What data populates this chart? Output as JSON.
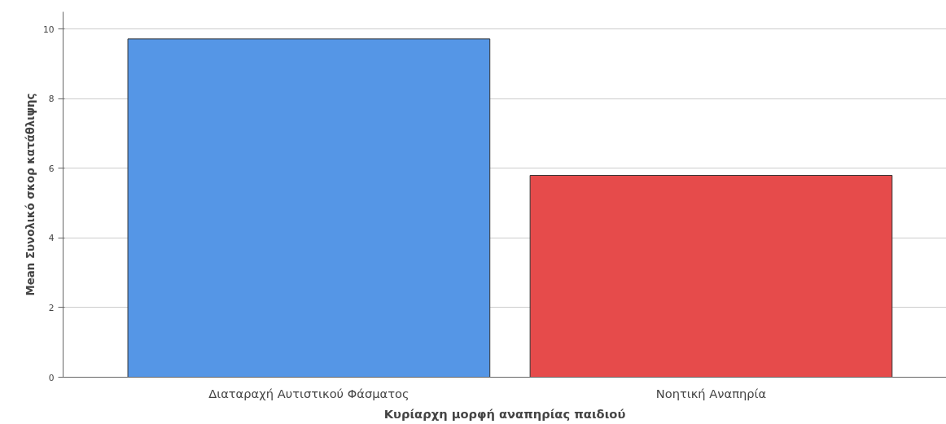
{
  "chart_data": {
    "type": "bar",
    "xlabel": "Κυρίαρχη μορφή αναπηρίας παιδιού",
    "ylabel": "Mean Συνολικό σκορ κατάθλιψης",
    "categories": [
      "Διαταραχή Αυτιστικού Φάσματος",
      "Νοητική Αναπηρία"
    ],
    "values": [
      9.72,
      5.8
    ],
    "colors": [
      "#5596e6",
      "#e64b4b"
    ],
    "ylim": [
      0,
      10.5
    ],
    "yticks": [
      0,
      2,
      4,
      6,
      8,
      10
    ],
    "grid": "y"
  }
}
